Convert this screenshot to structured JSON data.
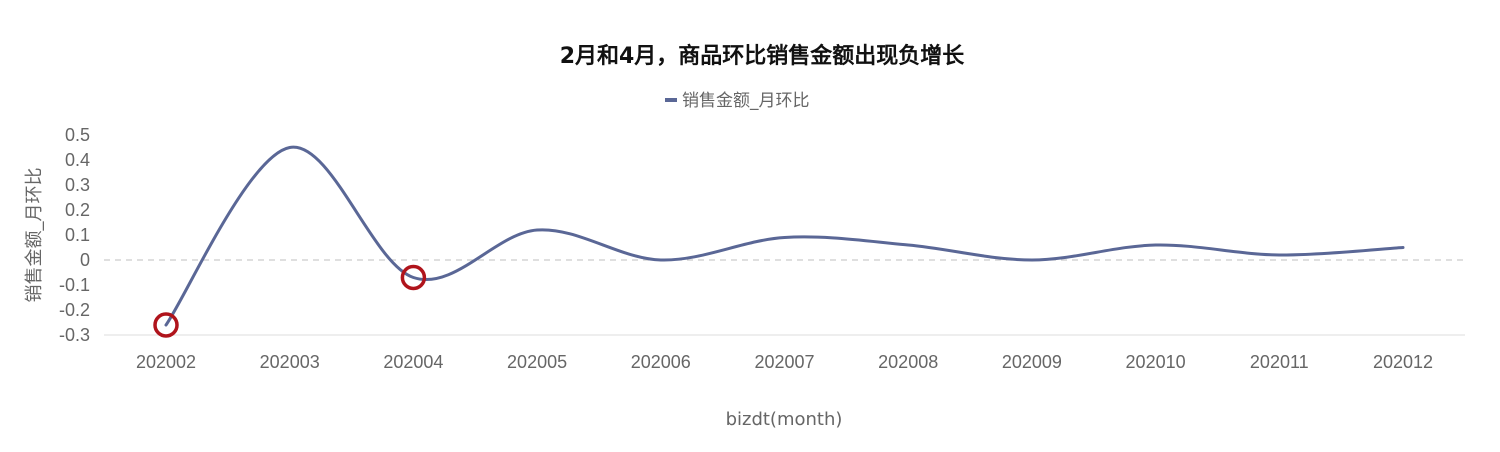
{
  "chart_data": {
    "type": "line",
    "title": "2月和4月，商品环比销售金额出现负增长",
    "xlabel": "bizdt(month)",
    "ylabel": "销售金额_月环比",
    "categories": [
      "202002",
      "202003",
      "202004",
      "202005",
      "202006",
      "202007",
      "202008",
      "202009",
      "202010",
      "202011",
      "202012"
    ],
    "series": [
      {
        "name": "销售金额_月环比",
        "color": "#5a6796",
        "smooth": true,
        "values": [
          -0.26,
          0.45,
          -0.07,
          0.12,
          0.0,
          0.09,
          0.06,
          0.0,
          0.06,
          0.02,
          0.05
        ]
      }
    ],
    "ylim": [
      -0.3,
      0.5
    ],
    "yticks": [
      "-0.3",
      "-0.2",
      "-0.1",
      "0",
      "0.1",
      "0.2",
      "0.3",
      "0.4",
      "0.5"
    ],
    "highlighted_categories": [
      "202002",
      "202004"
    ],
    "highlight_color": "#b0141c",
    "zero_line": "dashed",
    "grid": false,
    "legend_position": "top-center"
  }
}
